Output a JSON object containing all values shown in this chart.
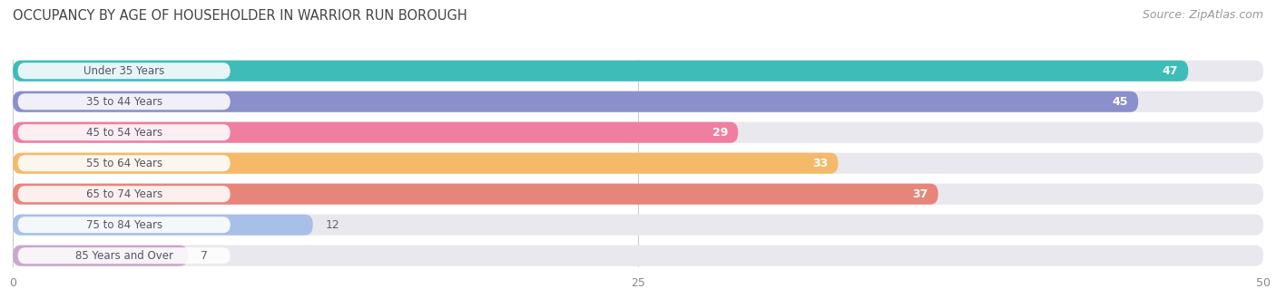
{
  "title": "OCCUPANCY BY AGE OF HOUSEHOLDER IN WARRIOR RUN BOROUGH",
  "source": "Source: ZipAtlas.com",
  "categories": [
    "Under 35 Years",
    "35 to 44 Years",
    "45 to 54 Years",
    "55 to 64 Years",
    "65 to 74 Years",
    "75 to 84 Years",
    "85 Years and Over"
  ],
  "values": [
    47,
    45,
    29,
    33,
    37,
    12,
    7
  ],
  "bar_colors": [
    "#3dbcb8",
    "#8b8fcc",
    "#f07ea0",
    "#f5b96a",
    "#e8857a",
    "#a8c0e8",
    "#c8a8cc"
  ],
  "xlim": [
    0,
    50
  ],
  "xticks": [
    0,
    25,
    50
  ],
  "title_fontsize": 10.5,
  "source_fontsize": 9,
  "label_fontsize": 8.5,
  "value_fontsize": 9,
  "background_color": "#ffffff",
  "bar_background_color": "#e8e8ee",
  "value_threshold_inside": 20
}
